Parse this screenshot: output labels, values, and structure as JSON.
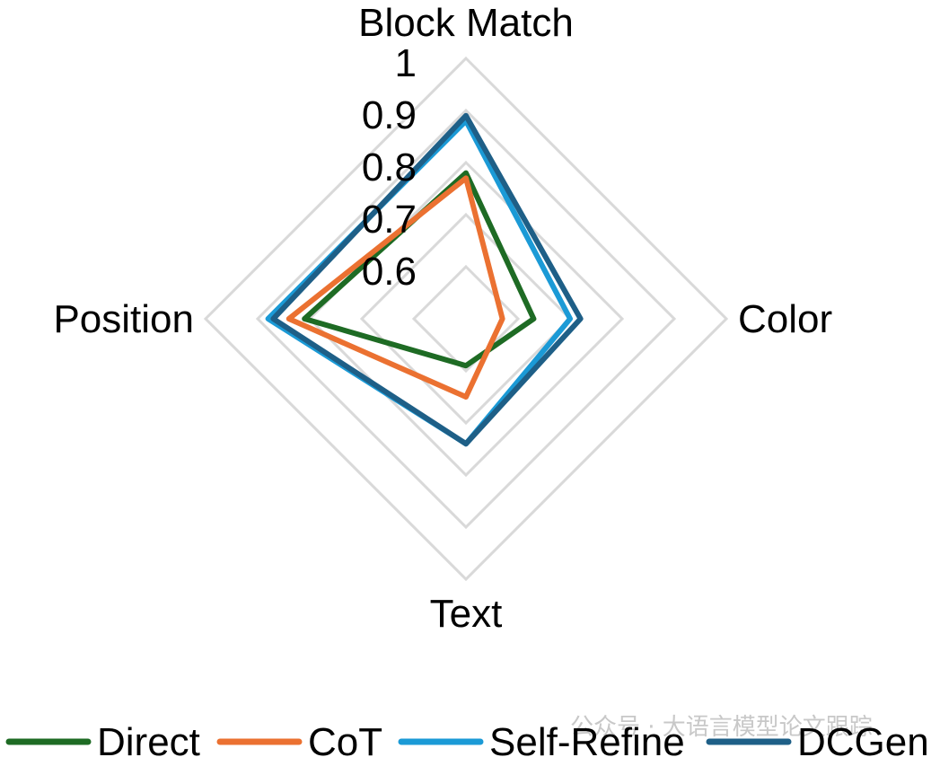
{
  "chart_data": {
    "type": "radar",
    "axes": [
      "Block Match",
      "Color",
      "Text",
      "Position"
    ],
    "rlim": [
      0.5,
      1.0
    ],
    "ticks": [
      "0.6",
      "0.7",
      "0.8",
      "0.9",
      "1"
    ],
    "tick_values": [
      0.6,
      0.7,
      0.8,
      0.9,
      1.0
    ],
    "grid": true,
    "legend_position": "bottom",
    "series": [
      {
        "name": "Direct",
        "color": "#1e6b24",
        "values": [
          0.78,
          0.63,
          0.59,
          0.81
        ]
      },
      {
        "name": "CoT",
        "color": "#eb7131",
        "values": [
          0.77,
          0.57,
          0.65,
          0.84
        ]
      },
      {
        "name": "Self-Refine",
        "color": "#1b9ad6",
        "values": [
          0.88,
          0.7,
          0.74,
          0.88
        ]
      },
      {
        "name": "DCGen",
        "color": "#1e5f87",
        "values": [
          0.89,
          0.72,
          0.74,
          0.87
        ]
      }
    ]
  },
  "watermark": "公众号 · 大语言模型论文跟踪"
}
